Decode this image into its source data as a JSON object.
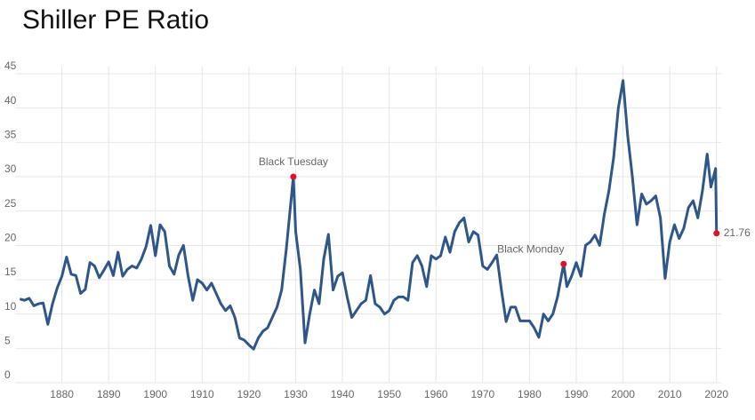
{
  "chart_data": {
    "type": "line",
    "title": "Shiller PE Ratio",
    "x": [
      1871,
      1872,
      1873,
      1874,
      1875,
      1876,
      1877,
      1878,
      1879,
      1880,
      1881,
      1882,
      1883,
      1884,
      1885,
      1886,
      1887,
      1888,
      1889,
      1890,
      1891,
      1892,
      1893,
      1894,
      1895,
      1896,
      1897,
      1898,
      1899,
      1900,
      1901,
      1902,
      1903,
      1904,
      1905,
      1906,
      1907,
      1908,
      1909,
      1910,
      1911,
      1912,
      1913,
      1914,
      1915,
      1916,
      1917,
      1918,
      1919,
      1920,
      1921,
      1922,
      1923,
      1924,
      1925,
      1926,
      1927,
      1928,
      1929.5,
      1930,
      1931,
      1932,
      1933,
      1934,
      1935,
      1936,
      1937,
      1938,
      1939,
      1940,
      1941,
      1942,
      1943,
      1944,
      1945,
      1946,
      1947,
      1948,
      1949,
      1950,
      1951,
      1952,
      1953,
      1954,
      1955,
      1956,
      1957,
      1958,
      1959,
      1960,
      1961,
      1962,
      1963,
      1964,
      1965,
      1966,
      1967,
      1968,
      1969,
      1970,
      1971,
      1972,
      1973,
      1974,
      1975,
      1976,
      1977,
      1978,
      1979,
      1980,
      1981,
      1982,
      1983,
      1984,
      1985,
      1986,
      1987.3,
      1988,
      1989,
      1990,
      1991,
      1992,
      1993,
      1994,
      1995,
      1996,
      1997,
      1998,
      1999,
      2000,
      2001,
      2002,
      2003,
      2004,
      2005,
      2006,
      2007,
      2008,
      2009,
      2010,
      2011,
      2012,
      2013,
      2014,
      2015,
      2016,
      2017,
      2018,
      2018.8,
      2019.8,
      2020
    ],
    "series": [
      {
        "color": "#2f5689",
        "values": [
          12.2,
          12.0,
          12.3,
          11.2,
          11.5,
          11.6,
          8.5,
          11.5,
          13.8,
          15.5,
          18.3,
          15.8,
          15.6,
          13.0,
          13.6,
          17.5,
          17.0,
          15.3,
          16.4,
          17.6,
          15.6,
          19.0,
          15.5,
          16.5,
          17.0,
          16.7,
          18.0,
          19.8,
          22.9,
          18.5,
          23.0,
          22.0,
          17.0,
          15.8,
          18.6,
          20.0,
          15.5,
          12.0,
          15.0,
          14.5,
          13.5,
          14.5,
          13.0,
          11.5,
          10.5,
          11.2,
          9.5,
          6.5,
          6.2,
          5.5,
          4.9,
          6.5,
          7.5,
          8.0,
          9.5,
          11.0,
          13.5,
          19.5,
          30.0,
          22.0,
          16.5,
          5.8,
          10.0,
          13.5,
          11.5,
          18.0,
          21.6,
          13.5,
          15.5,
          16.0,
          12.5,
          9.5,
          10.5,
          11.5,
          12.0,
          15.6,
          11.5,
          11.0,
          10.0,
          10.5,
          12.0,
          12.5,
          12.5,
          12.0,
          17.5,
          18.5,
          17.0,
          14.0,
          18.5,
          18.0,
          18.5,
          21.2,
          19.0,
          22.0,
          23.3,
          24.0,
          20.5,
          22.0,
          21.5,
          17.0,
          16.5,
          17.5,
          18.6,
          13.5,
          8.9,
          11.0,
          11.0,
          9.0,
          9.0,
          9.0,
          8.0,
          6.6,
          10.0,
          9.0,
          10.0,
          12.5,
          17.3,
          14.0,
          15.5,
          17.5,
          15.5,
          20.0,
          20.5,
          21.5,
          20.0,
          24.5,
          28.0,
          32.8,
          40.0,
          44.0,
          36.0,
          30.0,
          23.0,
          27.5,
          26.0,
          26.5,
          27.2,
          24.0,
          15.2,
          20.5,
          23.0,
          21.0,
          22.5,
          25.5,
          26.5,
          24.0,
          28.0,
          33.3,
          28.5,
          31.2,
          21.76
        ]
      }
    ],
    "annotations": [
      {
        "text": "Black Tuesday",
        "x": 1929.5,
        "value": 30.0
      },
      {
        "text": "Black Monday",
        "x": 1987.3,
        "value": 17.3
      },
      {
        "x": 2020,
        "value": 21.76
      }
    ],
    "marker_color": "#e0112b",
    "xlim": [
      1870,
      2021
    ],
    "ylim": [
      0,
      45
    ],
    "xticks": [
      1880,
      1890,
      1900,
      1910,
      1920,
      1930,
      1940,
      1950,
      1960,
      1970,
      1980,
      1990,
      2000,
      2010,
      2020
    ],
    "yticks": [
      0,
      5,
      10,
      15,
      20,
      25,
      30,
      35,
      40,
      45
    ],
    "grid": true
  }
}
